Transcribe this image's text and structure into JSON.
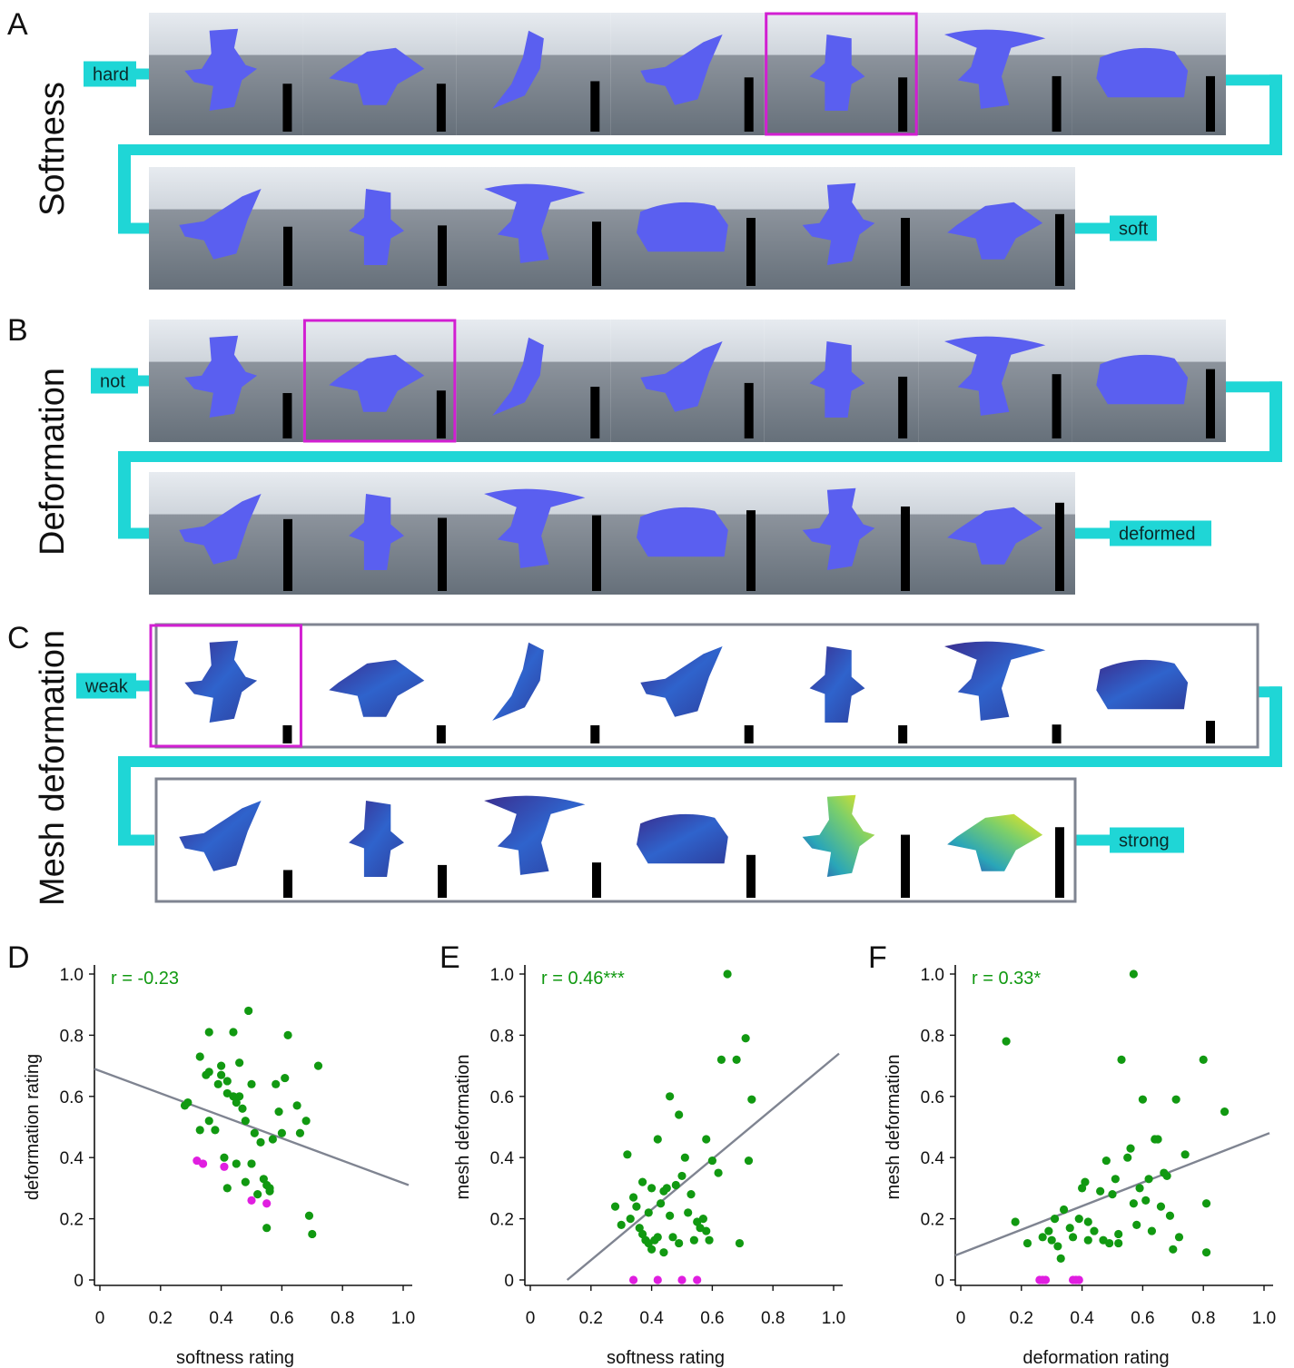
{
  "figure": {
    "panels": {
      "A": {
        "letter": "A",
        "title": "Softness",
        "start_label": "hard",
        "end_label": "soft",
        "bar_levels_row1": [
          0.38,
          0.38,
          0.4,
          0.43,
          0.43,
          0.44,
          0.44
        ],
        "bar_levels_row2": [
          0.47,
          0.48,
          0.51,
          0.54,
          0.54,
          0.57
        ],
        "highlight_index": 4
      },
      "B": {
        "letter": "B",
        "title": "Deformation",
        "start_label": "not",
        "end_label": "deformed",
        "bar_levels_row1": [
          0.36,
          0.38,
          0.41,
          0.44,
          0.49,
          0.51,
          0.55
        ],
        "bar_levels_row2": [
          0.57,
          0.58,
          0.6,
          0.64,
          0.67,
          0.7
        ],
        "highlight_index": 1
      },
      "C": {
        "letter": "C",
        "title": "Mesh deformation",
        "start_label": "weak",
        "end_label": "strong",
        "bar_levels_row1": [
          0.0,
          0.1,
          0.12,
          0.13,
          0.14,
          0.15,
          0.18
        ],
        "bar_levels_row2": [
          0.22,
          0.26,
          0.28,
          0.34,
          0.5,
          0.56
        ],
        "highlight_index": 0
      }
    },
    "colors": {
      "connector": "#1fd6d6",
      "highlight": "#d21fd2",
      "green_points": "#119911",
      "magenta_points": "#e01ee0",
      "regression_line": "#7f8491",
      "blob": "#5a5ff0",
      "frame": "#7f8491"
    }
  },
  "chart_data": [
    {
      "type": "scatter",
      "letter": "D",
      "xlabel": "softness rating",
      "ylabel": "deformation rating",
      "annotation": "r = -0.23",
      "xlim": [
        0,
        1.0
      ],
      "ylim": [
        0,
        1.0
      ],
      "xticks": [
        "0",
        "0.2",
        "0.4",
        "0.6",
        "0.8",
        "1.0"
      ],
      "yticks": [
        "0",
        "0.2",
        "0.4",
        "0.6",
        "0.8",
        "1.0"
      ],
      "fit_line": {
        "intercept": 0.69,
        "slope": -0.38
      },
      "green_points": [
        [
          0.28,
          0.57
        ],
        [
          0.29,
          0.58
        ],
        [
          0.33,
          0.73
        ],
        [
          0.33,
          0.49
        ],
        [
          0.35,
          0.67
        ],
        [
          0.36,
          0.81
        ],
        [
          0.36,
          0.68
        ],
        [
          0.36,
          0.52
        ],
        [
          0.38,
          0.49
        ],
        [
          0.39,
          0.64
        ],
        [
          0.4,
          0.7
        ],
        [
          0.4,
          0.67
        ],
        [
          0.41,
          0.4
        ],
        [
          0.42,
          0.61
        ],
        [
          0.42,
          0.65
        ],
        [
          0.42,
          0.3
        ],
        [
          0.44,
          0.81
        ],
        [
          0.44,
          0.6
        ],
        [
          0.45,
          0.38
        ],
        [
          0.45,
          0.58
        ],
        [
          0.46,
          0.6
        ],
        [
          0.46,
          0.71
        ],
        [
          0.47,
          0.56
        ],
        [
          0.48,
          0.52
        ],
        [
          0.48,
          0.32
        ],
        [
          0.49,
          0.88
        ],
        [
          0.5,
          0.38
        ],
        [
          0.5,
          0.64
        ],
        [
          0.51,
          0.48
        ],
        [
          0.52,
          0.28
        ],
        [
          0.53,
          0.45
        ],
        [
          0.54,
          0.33
        ],
        [
          0.55,
          0.31
        ],
        [
          0.55,
          0.17
        ],
        [
          0.56,
          0.29
        ],
        [
          0.56,
          0.3
        ],
        [
          0.57,
          0.46
        ],
        [
          0.58,
          0.64
        ],
        [
          0.59,
          0.55
        ],
        [
          0.6,
          0.48
        ],
        [
          0.61,
          0.66
        ],
        [
          0.62,
          0.8
        ],
        [
          0.65,
          0.57
        ],
        [
          0.66,
          0.48
        ],
        [
          0.68,
          0.52
        ],
        [
          0.69,
          0.21
        ],
        [
          0.7,
          0.15
        ],
        [
          0.72,
          0.7
        ]
      ],
      "magenta_points": [
        [
          0.32,
          0.39
        ],
        [
          0.34,
          0.38
        ],
        [
          0.41,
          0.37
        ],
        [
          0.5,
          0.26
        ],
        [
          0.55,
          0.25
        ]
      ]
    },
    {
      "type": "scatter",
      "letter": "E",
      "xlabel": "softness rating",
      "ylabel": "mesh deformation",
      "annotation": "r = 0.46***",
      "xlim": [
        0,
        1.0
      ],
      "ylim": [
        0,
        1.0
      ],
      "xticks": [
        "0",
        "0.2",
        "0.4",
        "0.6",
        "0.8",
        "1.0"
      ],
      "yticks": [
        "0",
        "0.2",
        "0.4",
        "0.6",
        "0.8",
        "1.0"
      ],
      "fit_line": {
        "intercept": -0.12,
        "slope": 0.86
      },
      "green_points": [
        [
          0.28,
          0.24
        ],
        [
          0.3,
          0.18
        ],
        [
          0.32,
          0.41
        ],
        [
          0.33,
          0.2
        ],
        [
          0.34,
          0.27
        ],
        [
          0.35,
          0.24
        ],
        [
          0.36,
          0.17
        ],
        [
          0.37,
          0.32
        ],
        [
          0.37,
          0.15
        ],
        [
          0.38,
          0.13
        ],
        [
          0.39,
          0.12
        ],
        [
          0.39,
          0.22
        ],
        [
          0.4,
          0.1
        ],
        [
          0.4,
          0.3
        ],
        [
          0.41,
          0.13
        ],
        [
          0.42,
          0.46
        ],
        [
          0.42,
          0.14
        ],
        [
          0.43,
          0.25
        ],
        [
          0.44,
          0.09
        ],
        [
          0.44,
          0.29
        ],
        [
          0.45,
          0.3
        ],
        [
          0.46,
          0.6
        ],
        [
          0.46,
          0.21
        ],
        [
          0.47,
          0.14
        ],
        [
          0.48,
          0.31
        ],
        [
          0.49,
          0.12
        ],
        [
          0.49,
          0.54
        ],
        [
          0.5,
          0.34
        ],
        [
          0.51,
          0.4
        ],
        [
          0.52,
          0.22
        ],
        [
          0.53,
          0.28
        ],
        [
          0.54,
          0.13
        ],
        [
          0.55,
          0.19
        ],
        [
          0.56,
          0.17
        ],
        [
          0.57,
          0.2
        ],
        [
          0.58,
          0.16
        ],
        [
          0.58,
          0.46
        ],
        [
          0.59,
          0.13
        ],
        [
          0.6,
          0.39
        ],
        [
          0.62,
          0.35
        ],
        [
          0.63,
          0.72
        ],
        [
          0.65,
          1.0
        ],
        [
          0.68,
          0.72
        ],
        [
          0.69,
          0.12
        ],
        [
          0.71,
          0.79
        ],
        [
          0.72,
          0.39
        ],
        [
          0.73,
          0.59
        ]
      ],
      "magenta_points": [
        [
          0.34,
          0.0
        ],
        [
          0.42,
          0.0
        ],
        [
          0.5,
          0.0
        ],
        [
          0.55,
          0.0
        ]
      ]
    },
    {
      "type": "scatter",
      "letter": "F",
      "xlabel": "deformation rating",
      "ylabel": "mesh deformation",
      "annotation": "r = 0.33*",
      "xlim": [
        0,
        1.0
      ],
      "ylim": [
        0,
        1.0
      ],
      "xticks": [
        "0",
        "0.2",
        "0.4",
        "0.6",
        "0.8",
        "1.0"
      ],
      "yticks": [
        "0",
        "0.2",
        "0.4",
        "0.6",
        "0.8",
        "1.0"
      ],
      "fit_line": {
        "intercept": 0.08,
        "slope": 0.4
      },
      "green_points": [
        [
          0.15,
          0.78
        ],
        [
          0.18,
          0.19
        ],
        [
          0.22,
          0.12
        ],
        [
          0.27,
          0.14
        ],
        [
          0.29,
          0.16
        ],
        [
          0.3,
          0.13
        ],
        [
          0.31,
          0.2
        ],
        [
          0.32,
          0.11
        ],
        [
          0.33,
          0.07
        ],
        [
          0.34,
          0.23
        ],
        [
          0.36,
          0.17
        ],
        [
          0.37,
          0.14
        ],
        [
          0.39,
          0.2
        ],
        [
          0.4,
          0.3
        ],
        [
          0.41,
          0.32
        ],
        [
          0.42,
          0.13
        ],
        [
          0.42,
          0.19
        ],
        [
          0.44,
          0.16
        ],
        [
          0.46,
          0.29
        ],
        [
          0.47,
          0.13
        ],
        [
          0.48,
          0.39
        ],
        [
          0.49,
          0.12
        ],
        [
          0.5,
          0.28
        ],
        [
          0.51,
          0.33
        ],
        [
          0.52,
          0.15
        ],
        [
          0.52,
          0.12
        ],
        [
          0.53,
          0.72
        ],
        [
          0.55,
          0.4
        ],
        [
          0.56,
          0.43
        ],
        [
          0.57,
          0.25
        ],
        [
          0.57,
          1.0
        ],
        [
          0.58,
          0.18
        ],
        [
          0.59,
          0.3
        ],
        [
          0.6,
          0.59
        ],
        [
          0.61,
          0.26
        ],
        [
          0.62,
          0.33
        ],
        [
          0.63,
          0.16
        ],
        [
          0.64,
          0.46
        ],
        [
          0.65,
          0.46
        ],
        [
          0.66,
          0.24
        ],
        [
          0.67,
          0.35
        ],
        [
          0.68,
          0.34
        ],
        [
          0.69,
          0.21
        ],
        [
          0.7,
          0.1
        ],
        [
          0.71,
          0.59
        ],
        [
          0.72,
          0.14
        ],
        [
          0.74,
          0.41
        ],
        [
          0.8,
          0.72
        ],
        [
          0.81,
          0.25
        ],
        [
          0.81,
          0.09
        ],
        [
          0.87,
          0.55
        ]
      ],
      "magenta_points": [
        [
          0.26,
          0.0
        ],
        [
          0.27,
          0.0
        ],
        [
          0.28,
          0.0
        ],
        [
          0.37,
          0.0
        ],
        [
          0.38,
          0.0
        ],
        [
          0.39,
          0.0
        ]
      ]
    }
  ]
}
